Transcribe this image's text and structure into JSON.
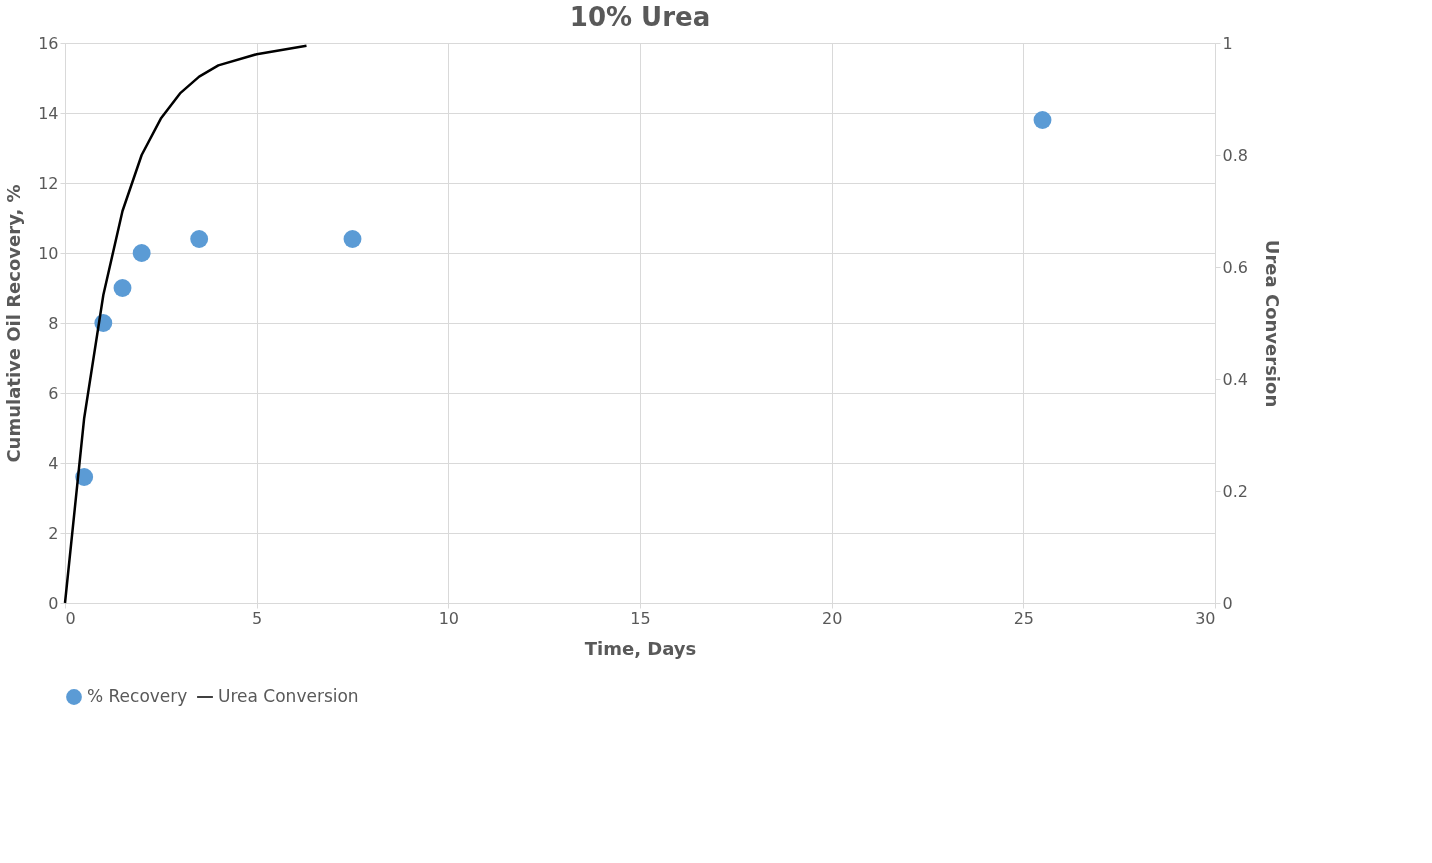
{
  "chart_data": {
    "type": "scatter",
    "title": "10% Urea",
    "xlabel": "Time, Days",
    "ylabel": "Cumulative Oil Recovery, %",
    "y2label": "Urea Conversion",
    "xlim": [
      0,
      30
    ],
    "xticks": [
      0,
      5,
      10,
      15,
      20,
      25,
      30
    ],
    "ylim": [
      0,
      16
    ],
    "yticks": [
      0,
      2,
      4,
      6,
      8,
      10,
      12,
      14,
      16
    ],
    "y2lim": [
      0,
      1
    ],
    "y2ticks": [
      0,
      0.2,
      0.4,
      0.6,
      0.8,
      1
    ],
    "grid": true,
    "legend": "bottom",
    "series": [
      {
        "name": "% Recovery",
        "type": "scatter",
        "marker": "circle",
        "color": "#5b9bd5",
        "x": [
          0.5,
          1.0,
          1.5,
          2.0,
          3.5,
          7.5,
          25.5
        ],
        "values": [
          3.6,
          8.0,
          9.0,
          10.0,
          10.4,
          10.4,
          13.8
        ]
      },
      {
        "name": "Urea Conversion",
        "type": "line",
        "axis": "y2",
        "marker": "none",
        "line_style": "solid",
        "color": "#000000",
        "x": [
          0,
          0.5,
          1,
          1.5,
          2,
          2.5,
          3,
          3.5,
          4,
          5,
          6.3
        ],
        "values": [
          0,
          0.33,
          0.55,
          0.7,
          0.8,
          0.865,
          0.91,
          0.94,
          0.96,
          0.98,
          0.995
        ]
      }
    ]
  }
}
